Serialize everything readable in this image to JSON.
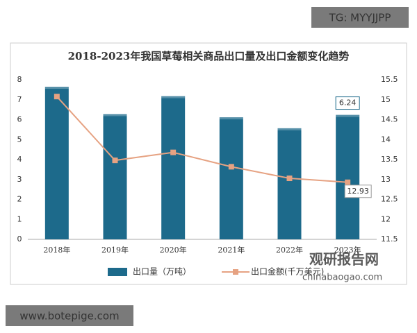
{
  "chart_data": {
    "type": "combo",
    "title": "2018-2023年我国草莓相关商品出口量及出口金额变化趋势",
    "categories": [
      "2018年",
      "2019年",
      "2020年",
      "2021年",
      "2022年",
      "2023年"
    ],
    "series": [
      {
        "name": "出口量（万吨）",
        "type": "bar",
        "color": "#1d6a8b",
        "values": [
          7.65,
          6.28,
          7.18,
          6.12,
          5.57,
          6.24
        ]
      },
      {
        "name": "出口金额(千万美元)",
        "type": "line",
        "axis": "y2",
        "color": "#e6a282",
        "values": [
          15.08,
          13.48,
          13.68,
          13.32,
          13.03,
          12.93
        ]
      }
    ],
    "ylim": [
      0,
      8
    ],
    "yticks": [
      0,
      1,
      2,
      3,
      4,
      5,
      6,
      7,
      8
    ],
    "y2lim": [
      11.5,
      15.5
    ],
    "y2ticks": [
      11.5,
      12,
      12.5,
      13,
      13.5,
      14,
      14.5,
      15,
      15.5
    ],
    "grid": false,
    "legend": "bottom"
  },
  "watermarks": [
    "TG: MYYJJPP",
    "www.botepige.com",
    "观研报告网",
    "chinabaogao.com"
  ]
}
